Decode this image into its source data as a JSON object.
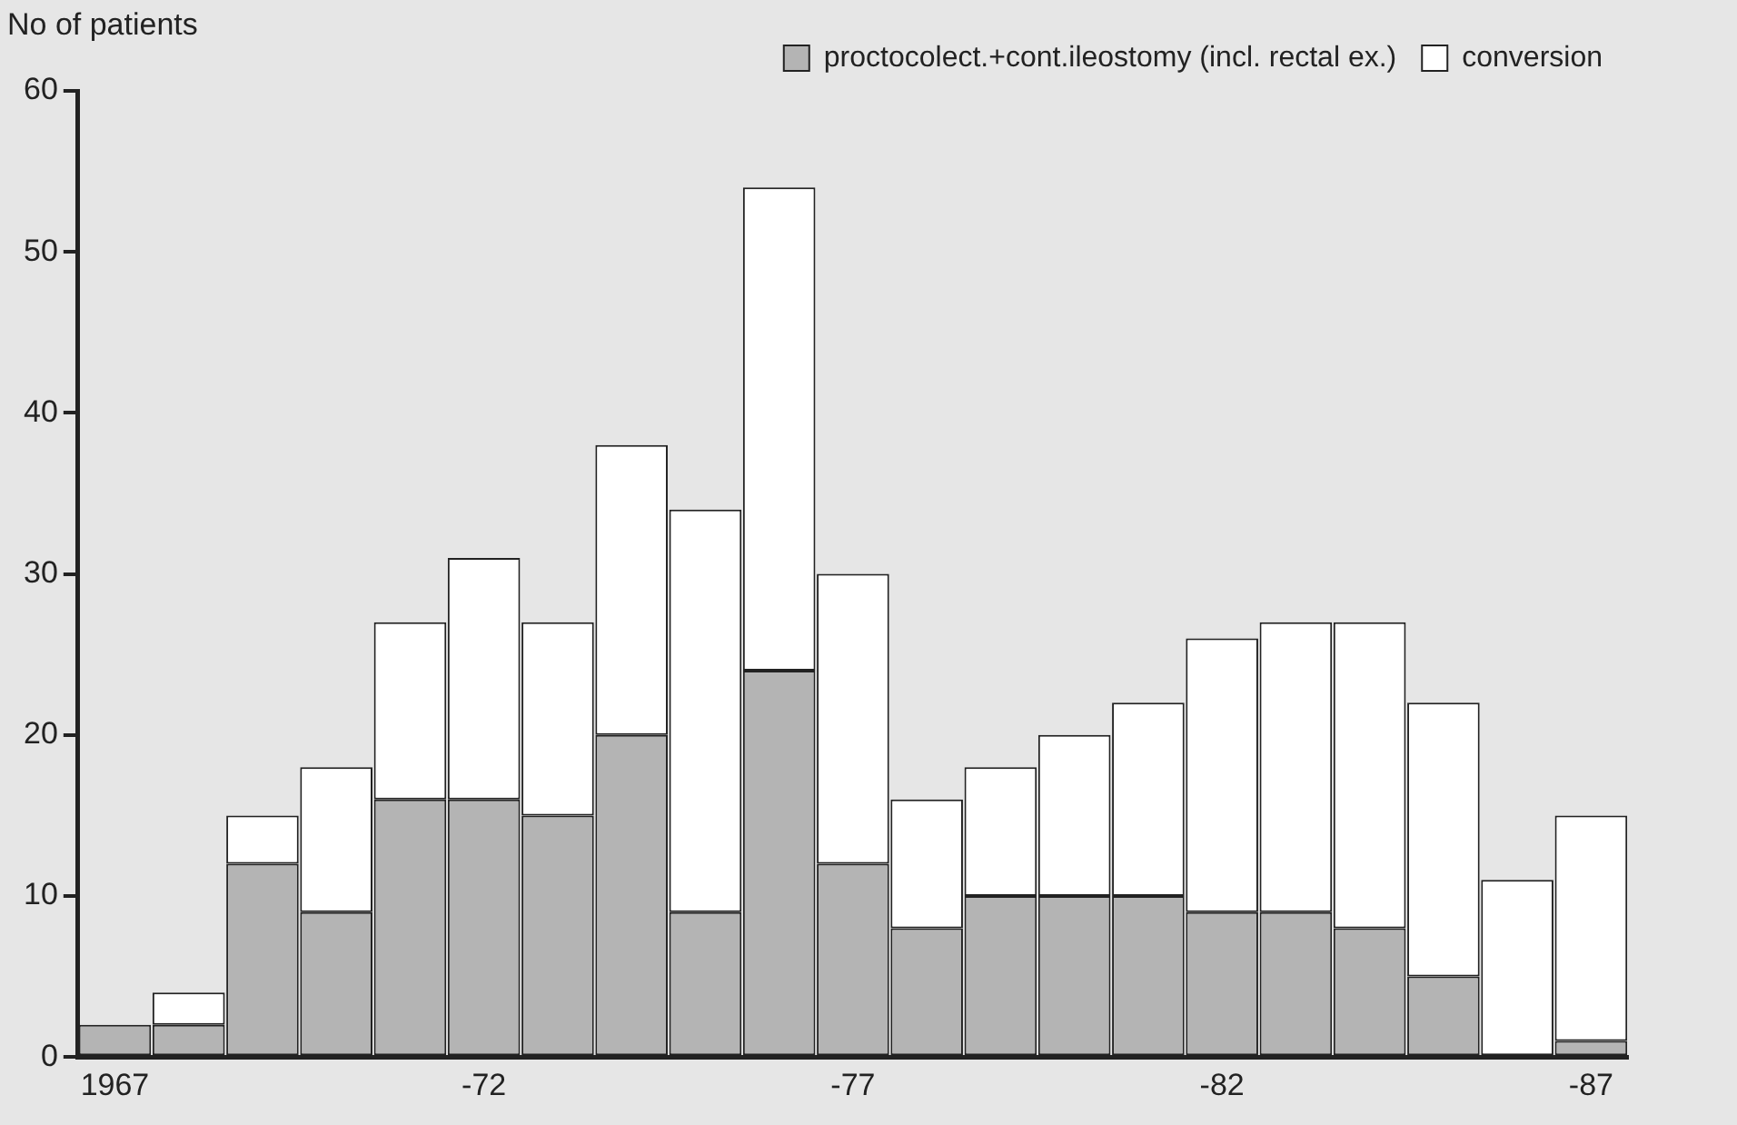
{
  "chart_data": {
    "type": "bar",
    "ylabel": "No of patients",
    "stacked": true,
    "legend": "top right",
    "grid": false,
    "categories": [
      "1967",
      null,
      null,
      null,
      null,
      "-72",
      null,
      null,
      null,
      null,
      "-77",
      null,
      null,
      null,
      null,
      "-82",
      null,
      null,
      null,
      null,
      "-87"
    ],
    "ylim": [
      0,
      60
    ],
    "yticks": [
      0,
      10,
      20,
      30,
      40,
      50,
      60
    ],
    "series": [
      {
        "name": "proctocolect.+cont.ileostomy (incl. rectal ex.)",
        "color": "#b4b4b4",
        "values": [
          2,
          2,
          12,
          9,
          16,
          16,
          15,
          20,
          9,
          24,
          12,
          8,
          10,
          10,
          10,
          9,
          9,
          8,
          5,
          0,
          1
        ]
      },
      {
        "name": "conversion",
        "color": "#ffffff",
        "values": [
          0,
          2,
          3,
          9,
          11,
          15,
          12,
          18,
          25,
          30,
          18,
          8,
          8,
          10,
          12,
          17,
          18,
          19,
          17,
          11,
          14
        ]
      }
    ]
  }
}
